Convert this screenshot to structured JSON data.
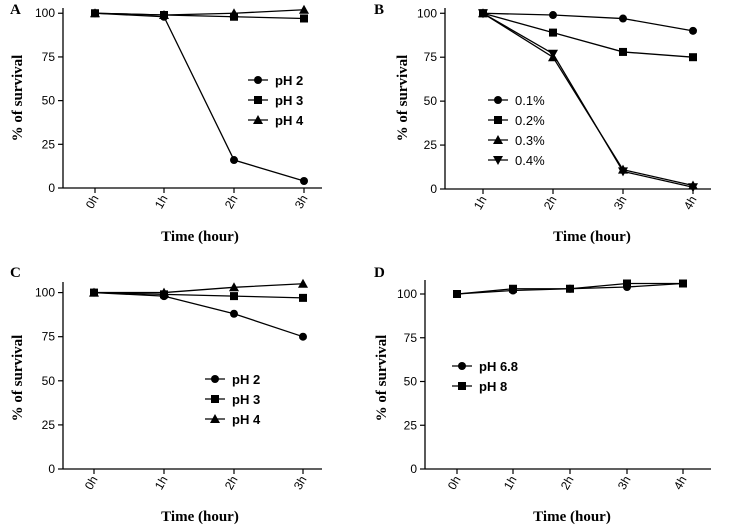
{
  "chart_data": [
    {
      "panel": "A",
      "type": "line",
      "xlabel": "Time (hour)",
      "ylabel": "% of survival",
      "categories": [
        "0h",
        "1h",
        "2h",
        "3h"
      ],
      "yticks": [
        0,
        25,
        50,
        75,
        100
      ],
      "ylim": [
        0,
        103
      ],
      "legend_position": "center-right",
      "legend_bold": true,
      "series": [
        {
          "name": "pH 2",
          "marker": "circle",
          "values": [
            100,
            98,
            16,
            4
          ]
        },
        {
          "name": "pH 3",
          "marker": "square",
          "values": [
            100,
            99,
            98,
            97
          ]
        },
        {
          "name": "pH 4",
          "marker": "triangle",
          "values": [
            100,
            99,
            100,
            102
          ]
        }
      ]
    },
    {
      "panel": "B",
      "type": "line",
      "xlabel": "Time (hour)",
      "ylabel": "% of survival",
      "categories": [
        "1h",
        "2h",
        "3h",
        "4h"
      ],
      "yticks": [
        0,
        25,
        50,
        75,
        100
      ],
      "ylim": [
        0,
        103
      ],
      "legend_position": "left",
      "legend_bold": false,
      "series": [
        {
          "name": "0.1%",
          "marker": "circle",
          "values": [
            100,
            99,
            97,
            90
          ]
        },
        {
          "name": "0.2%",
          "marker": "square",
          "values": [
            100,
            89,
            78,
            75
          ]
        },
        {
          "name": "0.3%",
          "marker": "triangle",
          "values": [
            100,
            75,
            11,
            2
          ]
        },
        {
          "name": "0.4%",
          "marker": "triangle-down",
          "values": [
            100,
            77,
            10,
            1
          ]
        }
      ]
    },
    {
      "panel": "C",
      "type": "line",
      "xlabel": "Time (hour)",
      "ylabel": "% of survival",
      "categories": [
        "0h",
        "1h",
        "2h",
        "3h"
      ],
      "yticks": [
        0,
        25,
        50,
        75,
        100
      ],
      "ylim": [
        0,
        106
      ],
      "legend_position": "center-bottom",
      "legend_bold": true,
      "series": [
        {
          "name": "pH 2",
          "marker": "circle",
          "values": [
            100,
            98,
            88,
            75
          ]
        },
        {
          "name": "pH 3",
          "marker": "square",
          "values": [
            100,
            99,
            98,
            97
          ]
        },
        {
          "name": "pH 4",
          "marker": "triangle",
          "values": [
            100,
            100,
            103,
            105
          ]
        }
      ]
    },
    {
      "panel": "D",
      "type": "line",
      "xlabel": "Time (hour)",
      "ylabel": "% of survival",
      "categories": [
        "0h",
        "1h",
        "2h",
        "3h",
        "4h"
      ],
      "yticks": [
        0,
        25,
        50,
        75,
        100
      ],
      "ylim": [
        0,
        108
      ],
      "legend_position": "center-right",
      "legend_bold": true,
      "series": [
        {
          "name": "pH 6.8",
          "marker": "circle",
          "values": [
            100,
            102,
            103,
            104,
            106
          ]
        },
        {
          "name": "pH 8",
          "marker": "square",
          "values": [
            100,
            103,
            103,
            106,
            106
          ]
        }
      ]
    }
  ]
}
